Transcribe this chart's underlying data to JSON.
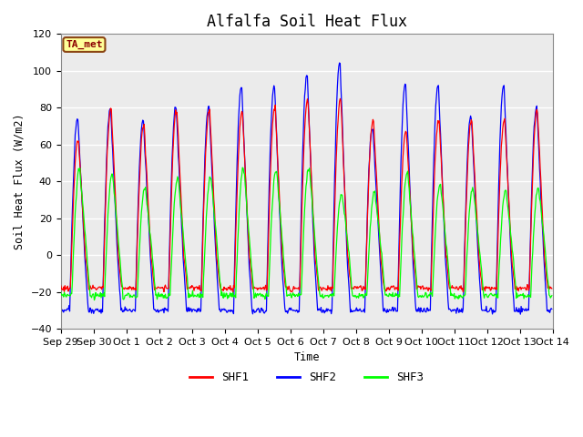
{
  "title": "Alfalfa Soil Heat Flux",
  "ylabel": "Soil Heat Flux (W/m2)",
  "xlabel": "Time",
  "ylim": [
    -40,
    120
  ],
  "yticks": [
    -40,
    -20,
    0,
    20,
    40,
    60,
    80,
    100,
    120
  ],
  "fig_facecolor": "#ffffff",
  "plot_bg_color": "#ebebeb",
  "shf1_color": "#ff0000",
  "shf2_color": "#0000ff",
  "shf3_color": "#00ff00",
  "legend_labels": [
    "SHF1",
    "SHF2",
    "SHF3"
  ],
  "annotation_text": "TA_met",
  "xtick_labels": [
    "Sep 29",
    "Sep 30",
    "Oct 1",
    "Oct 2",
    "Oct 3",
    "Oct 4",
    "Oct 5",
    "Oct 6",
    "Oct 7",
    "Oct 8",
    "Oct 9",
    "Oct 10",
    "Oct 11",
    "Oct 12",
    "Oct 13",
    "Oct 14"
  ],
  "n_days": 15,
  "samples_per_day": 48,
  "day_peaks_shf1": [
    62,
    79,
    70,
    78,
    78,
    77,
    79,
    84,
    84,
    73,
    67,
    73,
    73,
    73,
    78
  ],
  "day_peaks_shf2": [
    74,
    79,
    72,
    80,
    80,
    91,
    91,
    97,
    104,
    69,
    92,
    92,
    75,
    91,
    79
  ],
  "day_peaks_shf3": [
    46,
    44,
    36,
    42,
    42,
    47,
    46,
    47,
    33,
    34,
    44,
    38,
    36,
    35,
    36
  ],
  "night_shf1": -18,
  "night_shf2_extra": -12,
  "night_shf3": -22
}
